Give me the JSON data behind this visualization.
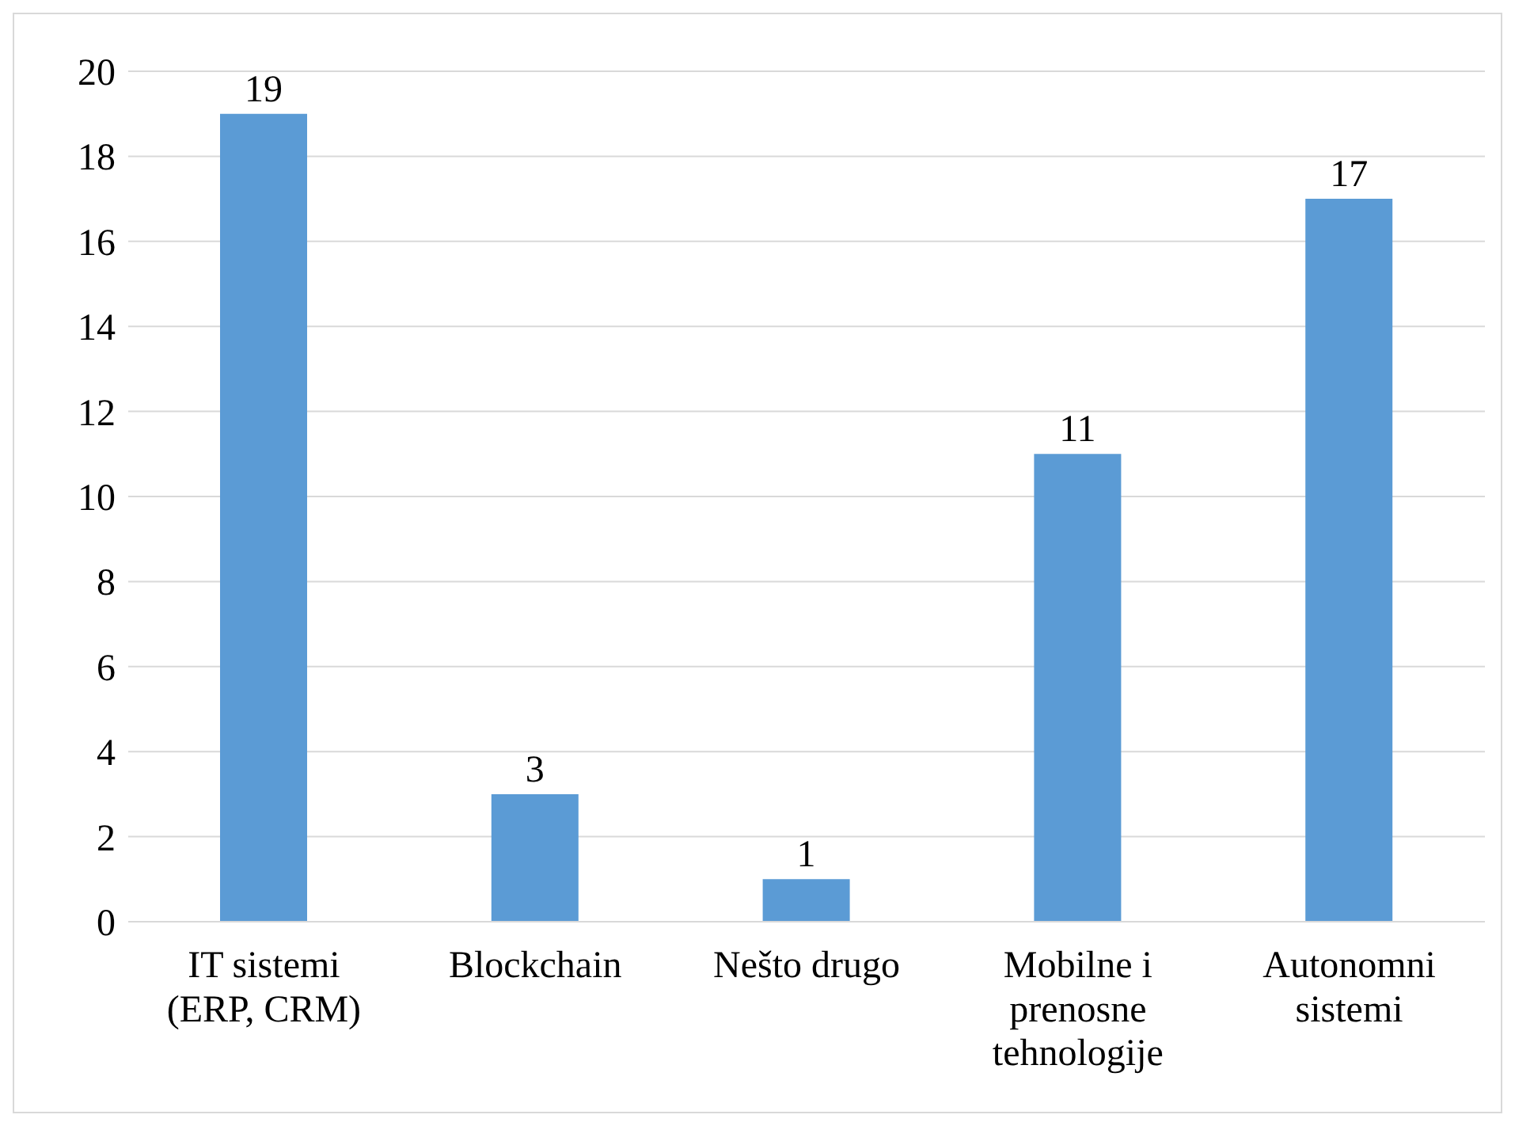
{
  "chart_data": {
    "type": "bar",
    "categories": [
      "IT sistemi (ERP, CRM)",
      "Blockchain",
      "Nešto drugo",
      "Mobilne i prenosne tehnologije",
      "Autonomni sistemi"
    ],
    "values": [
      19,
      3,
      1,
      11,
      17
    ],
    "color": "#5b9bd5",
    "ylim": [
      0,
      20
    ],
    "yticks": [
      0,
      2,
      4,
      6,
      8,
      10,
      12,
      14,
      16,
      18,
      20
    ],
    "grid": "y",
    "data_labels": true
  }
}
